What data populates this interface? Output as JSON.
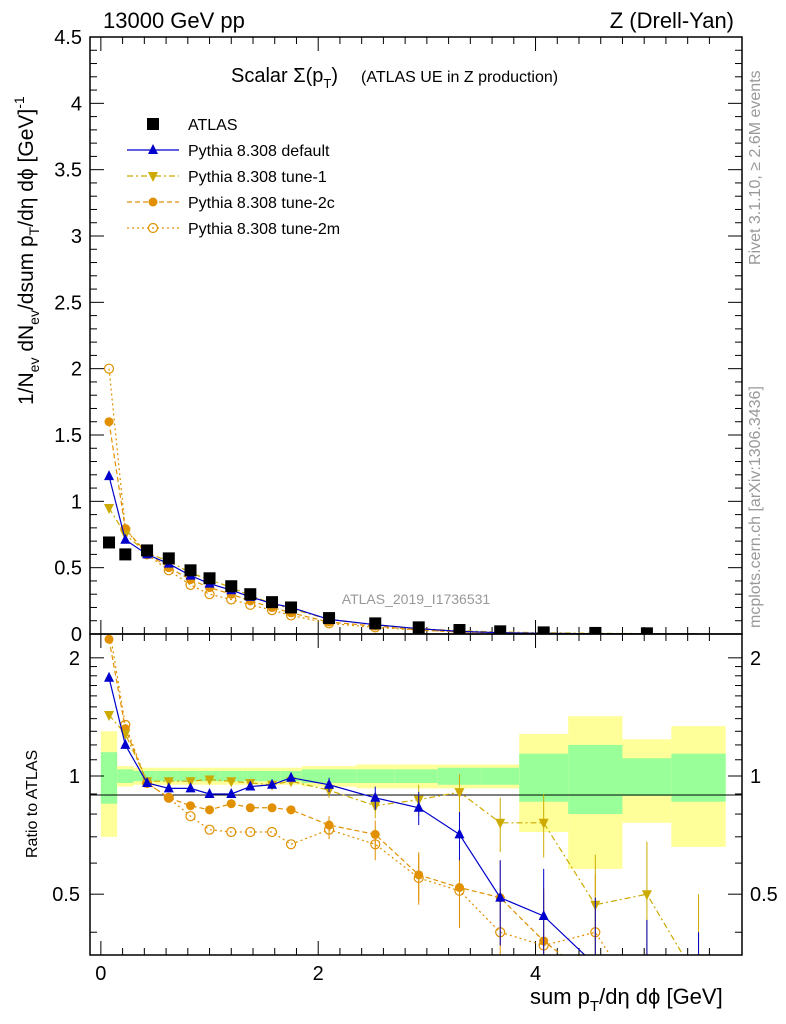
{
  "header": {
    "left": "13000 GeV pp",
    "right": "Z (Drell-Yan)"
  },
  "side_labels": {
    "rivet": "Rivet 3.1.10, ≥ 2.6M events",
    "mcplots": "mcplots.cern.ch [arXiv:1306.3436]"
  },
  "chart_data": {
    "type": "line",
    "title": "Scalar Σ(pT) (ATLAS UE in Z production)",
    "analysis_id": "ATLAS_2019_I1736531",
    "xlabel": "sum pT/dη dϕ [GeV]",
    "ylabel_top": "1/Nev dNev/dsum pT/dη dϕ [GeV]-1",
    "ylabel_bottom": "Ratio to ATLAS",
    "xlim": [
      -0.1,
      5.9
    ],
    "top_ylim": [
      0,
      4.5
    ],
    "bottom_ylim": [
      0.35,
      2.3
    ],
    "x_ticks": [
      "0",
      "2",
      "4"
    ],
    "top_y_ticks": [
      "0",
      "0.5",
      "1",
      "1.5",
      "2",
      "2.5",
      "3",
      "3.5",
      "4",
      "4.5"
    ],
    "bottom_y_ticks": [
      "0.5",
      "1",
      "2"
    ],
    "x": [
      0.075,
      0.225,
      0.425,
      0.625,
      0.825,
      1.0,
      1.2,
      1.375,
      1.575,
      1.75,
      2.1,
      2.525,
      2.925,
      3.3,
      3.675,
      4.075,
      4.55,
      5.025,
      5.5
    ],
    "colors": {
      "data": "#000000",
      "default": "#0000cc",
      "tune1": "#ccaa00",
      "tune2c": "#e09000",
      "tune2m": "#e09000",
      "band_inner": "#99ff99",
      "band_outer": "#ffff99"
    },
    "band_edges": [
      0.0,
      0.15,
      0.3,
      0.5,
      0.7,
      0.9,
      1.1,
      1.3,
      1.45,
      1.65,
      1.85,
      2.35,
      2.7,
      3.1,
      3.5,
      3.85,
      4.3,
      4.8,
      5.25,
      5.75
    ],
    "band_inner": [
      0.15,
      0.04,
      0.03,
      0.03,
      0.03,
      0.03,
      0.03,
      0.03,
      0.03,
      0.03,
      0.04,
      0.04,
      0.04,
      0.05,
      0.05,
      0.14,
      0.2,
      0.11,
      0.14
    ],
    "band_outer": [
      0.3,
      0.06,
      0.05,
      0.05,
      0.05,
      0.05,
      0.05,
      0.05,
      0.05,
      0.05,
      0.06,
      0.07,
      0.07,
      0.07,
      0.07,
      0.28,
      0.42,
      0.24,
      0.34
    ],
    "series": [
      {
        "name": "ATLAS",
        "key": "data",
        "marker": "square",
        "values": [
          0.69,
          0.6,
          0.63,
          0.57,
          0.48,
          0.42,
          0.36,
          0.3,
          0.24,
          0.2,
          0.12,
          0.08,
          0.05,
          0.03,
          0.02,
          0.012,
          0.008,
          0.005,
          0.003
        ],
        "ratio": [
          1.0,
          1.0,
          1.0,
          1.0,
          1.0,
          1.0,
          1.0,
          1.0,
          1.0,
          1.0,
          1.0,
          1.0,
          1.0,
          1.0,
          1.0,
          1.0,
          1.0,
          1.0,
          1.0
        ]
      },
      {
        "name": "Pythia 8.308 default",
        "key": "default",
        "marker": "triangle-up",
        "dash": "",
        "values": [
          1.19,
          0.71,
          0.6,
          0.53,
          0.44,
          0.38,
          0.33,
          0.28,
          0.23,
          0.2,
          0.11,
          0.07,
          0.04,
          0.02,
          0.01,
          0.005,
          0.002,
          0.001,
          0.0005
        ],
        "ratio": [
          1.78,
          1.2,
          0.96,
          0.93,
          0.93,
          0.9,
          0.9,
          0.94,
          0.95,
          0.99,
          0.95,
          0.88,
          0.83,
          0.71,
          0.49,
          0.44,
          0.33,
          0.25,
          0.2
        ]
      },
      {
        "name": "Pythia 8.308 tune-1",
        "key": "tune1",
        "marker": "triangle-down",
        "dash": "6,3,2,3",
        "values": [
          0.95,
          0.75,
          0.61,
          0.55,
          0.46,
          0.41,
          0.35,
          0.29,
          0.23,
          0.19,
          0.11,
          0.07,
          0.04,
          0.025,
          0.015,
          0.01,
          0.005,
          0.003,
          0.002
        ],
        "ratio": [
          1.43,
          1.28,
          0.97,
          0.97,
          0.97,
          0.98,
          0.97,
          0.96,
          0.95,
          0.97,
          0.92,
          0.84,
          0.87,
          0.91,
          0.76,
          0.76,
          0.47,
          0.5,
          0.3
        ]
      },
      {
        "name": "Pythia 8.308 tune-2c",
        "key": "tune2c",
        "marker": "circle",
        "dash": "5,3",
        "values": [
          1.6,
          0.79,
          0.61,
          0.5,
          0.41,
          0.35,
          0.3,
          0.25,
          0.2,
          0.16,
          0.09,
          0.06,
          0.03,
          0.015,
          0.01,
          0.005,
          0.002,
          0.001,
          0.0005
        ],
        "ratio": [
          2.23,
          1.32,
          0.96,
          0.88,
          0.84,
          0.82,
          0.85,
          0.83,
          0.83,
          0.82,
          0.75,
          0.71,
          0.56,
          0.52,
          0.49,
          0.38,
          0.3,
          0.25,
          0.2
        ]
      },
      {
        "name": "Pythia 8.308 tune-2m",
        "key": "tune2m",
        "marker": "circle-open",
        "dash": "2,3",
        "values": [
          2.0,
          0.79,
          0.6,
          0.48,
          0.37,
          0.3,
          0.26,
          0.22,
          0.18,
          0.14,
          0.08,
          0.05,
          0.03,
          0.015,
          0.008,
          0.004,
          0.002,
          0.001,
          0.0005
        ],
        "ratio": [
          2.4,
          1.35,
          0.96,
          0.88,
          0.79,
          0.73,
          0.72,
          0.72,
          0.72,
          0.67,
          0.73,
          0.67,
          0.55,
          0.51,
          0.4,
          0.37,
          0.4,
          0.25,
          0.2
        ]
      }
    ]
  }
}
